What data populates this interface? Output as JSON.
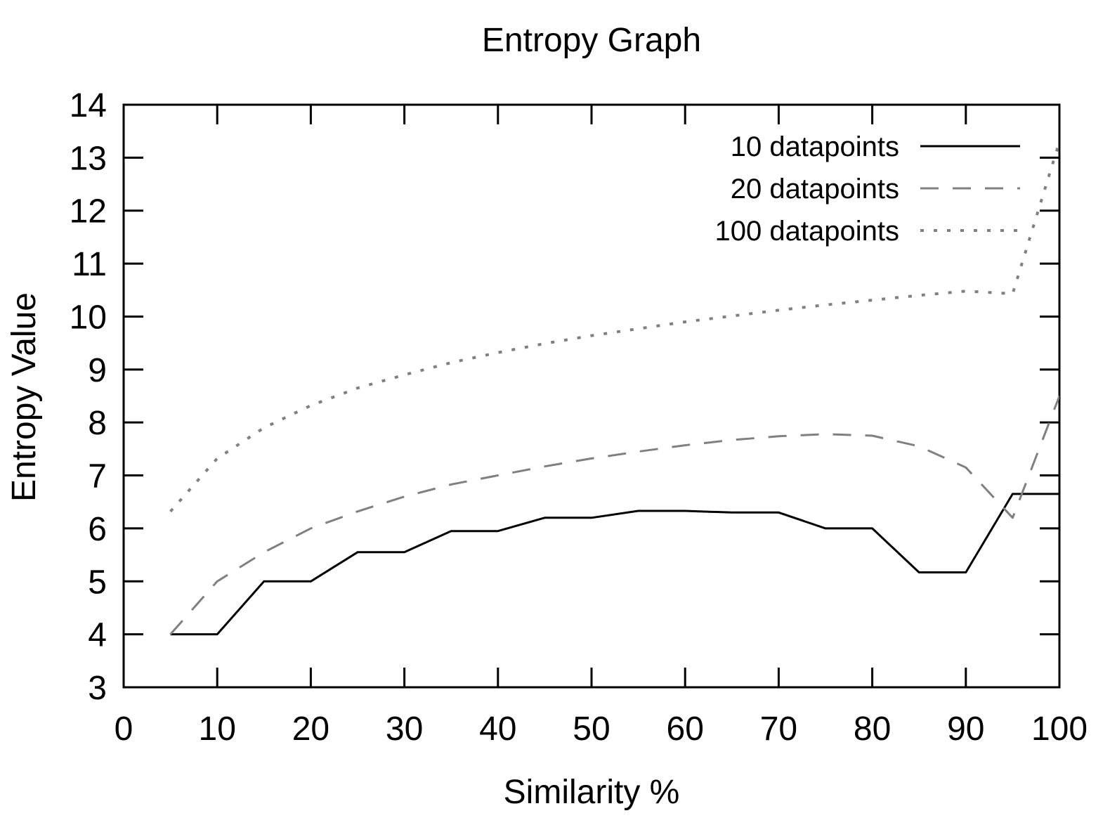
{
  "chart_data": {
    "type": "line",
    "title": "Entropy Graph",
    "xlabel": "Similarity %",
    "ylabel": "Entropy Value",
    "xlim": [
      0,
      100
    ],
    "ylim": [
      3,
      14
    ],
    "xticks": [
      0,
      10,
      20,
      30,
      40,
      50,
      60,
      70,
      80,
      90,
      100
    ],
    "yticks": [
      3,
      4,
      5,
      6,
      7,
      8,
      9,
      10,
      11,
      12,
      13,
      14
    ],
    "grid": false,
    "legend_position": "top-right",
    "series": [
      {
        "name": "10 datapoints",
        "style": "solid",
        "color": "#000000",
        "x": [
          5,
          10,
          15,
          20,
          25,
          30,
          35,
          40,
          45,
          50,
          55,
          60,
          65,
          70,
          75,
          80,
          85,
          90,
          95,
          100
        ],
        "y": [
          4.0,
          4.0,
          5.0,
          5.0,
          5.55,
          5.55,
          5.95,
          5.95,
          6.2,
          6.2,
          6.33,
          6.33,
          6.3,
          6.3,
          6.0,
          6.0,
          5.17,
          5.17,
          6.65,
          6.65
        ]
      },
      {
        "name": "20 datapoints",
        "style": "dashed",
        "color": "#808080",
        "x": [
          5,
          10,
          15,
          20,
          25,
          30,
          35,
          40,
          45,
          50,
          55,
          60,
          65,
          70,
          75,
          80,
          85,
          90,
          95,
          100
        ],
        "y": [
          4.0,
          5.0,
          5.55,
          6.0,
          6.32,
          6.6,
          6.83,
          7.0,
          7.17,
          7.32,
          7.45,
          7.57,
          7.67,
          7.74,
          7.78,
          7.75,
          7.55,
          7.15,
          6.2,
          8.5
        ]
      },
      {
        "name": "100 datapoints",
        "style": "dotted",
        "color": "#808080",
        "x": [
          5,
          10,
          15,
          20,
          25,
          30,
          35,
          40,
          45,
          50,
          55,
          60,
          65,
          70,
          75,
          80,
          85,
          90,
          95,
          100
        ],
        "y": [
          6.32,
          7.32,
          7.9,
          8.32,
          8.65,
          8.9,
          9.13,
          9.32,
          9.49,
          9.64,
          9.77,
          9.9,
          10.01,
          10.12,
          10.22,
          10.31,
          10.4,
          10.48,
          10.43,
          13.3
        ]
      }
    ]
  }
}
